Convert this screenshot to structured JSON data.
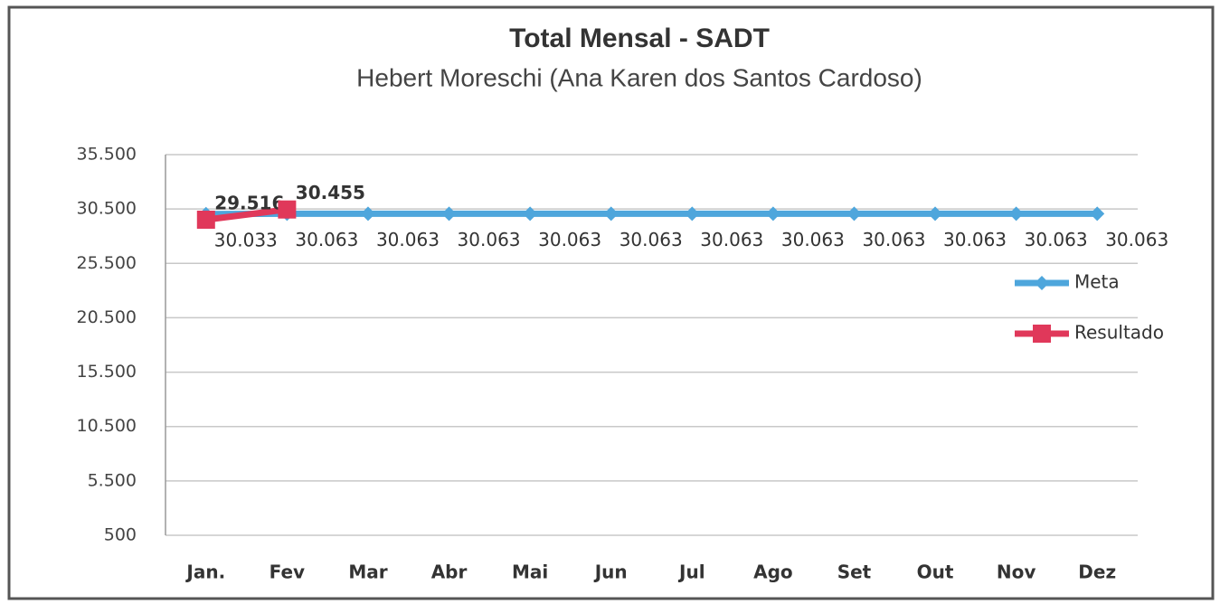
{
  "chart_data": {
    "type": "line",
    "title": "Total Mensal - SADT",
    "subtitle": "Hebert Moreschi (Ana Karen dos Santos Cardoso)",
    "categories": [
      "Jan.",
      "Fev",
      "Mar",
      "Abr",
      "Mai",
      "Jun",
      "Jul",
      "Ago",
      "Set",
      "Out",
      "Nov",
      "Dez"
    ],
    "series": [
      {
        "name": "Meta",
        "color": "#4ea6dc",
        "values": [
          30033,
          30063,
          30063,
          30063,
          30063,
          30063,
          30063,
          30063,
          30063,
          30063,
          30063,
          30063
        ],
        "value_labels": [
          "30.033",
          "30.063",
          "30.063",
          "30.063",
          "30.063",
          "30.063",
          "30.063",
          "30.063",
          "30.063",
          "30.063",
          "30.063",
          "30.063"
        ]
      },
      {
        "name": "Resultado",
        "color": "#e0385a",
        "values": [
          29516,
          30455,
          null,
          null,
          null,
          null,
          null,
          null,
          null,
          null,
          null,
          null
        ],
        "value_labels": [
          "29.516",
          "30.455",
          null,
          null,
          null,
          null,
          null,
          null,
          null,
          null,
          null,
          null
        ]
      }
    ],
    "ylim": [
      500,
      35500
    ],
    "yticks": [
      {
        "value": 500,
        "label": "500"
      },
      {
        "value": 5500,
        "label": "5.500"
      },
      {
        "value": 10500,
        "label": "10.500"
      },
      {
        "value": 15500,
        "label": "15.500"
      },
      {
        "value": 20500,
        "label": "20.500"
      },
      {
        "value": 25500,
        "label": "25.500"
      },
      {
        "value": 30500,
        "label": "30.500"
      },
      {
        "value": 35500,
        "label": "35.500"
      }
    ],
    "grid": true,
    "legend": "right"
  }
}
